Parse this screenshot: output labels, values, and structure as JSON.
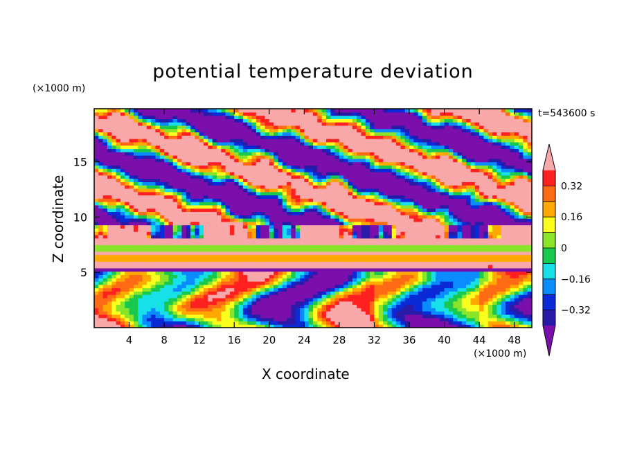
{
  "chart_data": {
    "type": "heatmap",
    "title": "potential temperature deviation",
    "xlabel": "X coordinate",
    "ylabel": "Z coordinate",
    "x_unit": "(×1000 m)",
    "y_unit": "(×1000 m)",
    "time_label": "t=543600 s",
    "xlim": [
      0,
      50
    ],
    "ylim": [
      0,
      19.8
    ],
    "x_ticks": [
      4,
      8,
      12,
      16,
      20,
      24,
      28,
      32,
      36,
      40,
      44,
      48
    ],
    "y_ticks": [
      5,
      10,
      15
    ],
    "colorbar": {
      "levels": [
        -0.4,
        -0.32,
        -0.24,
        -0.16,
        -0.08,
        0,
        0.08,
        0.16,
        0.24,
        0.32,
        0.4
      ],
      "tick_labels": [
        "0.32",
        "0.16",
        "0",
        "−0.16",
        "−0.32"
      ],
      "tick_values": [
        0.32,
        0.16,
        0,
        -0.16,
        -0.32
      ],
      "colors": [
        "#7b0fab",
        "#2a1aa8",
        "#0a2ad8",
        "#0a8cff",
        "#18e0e8",
        "#17c94f",
        "#8ae42a",
        "#fbff1e",
        "#ffa900",
        "#ff6a14",
        "#ff2020",
        "#f8a8a8"
      ],
      "extend": "both"
    }
  }
}
